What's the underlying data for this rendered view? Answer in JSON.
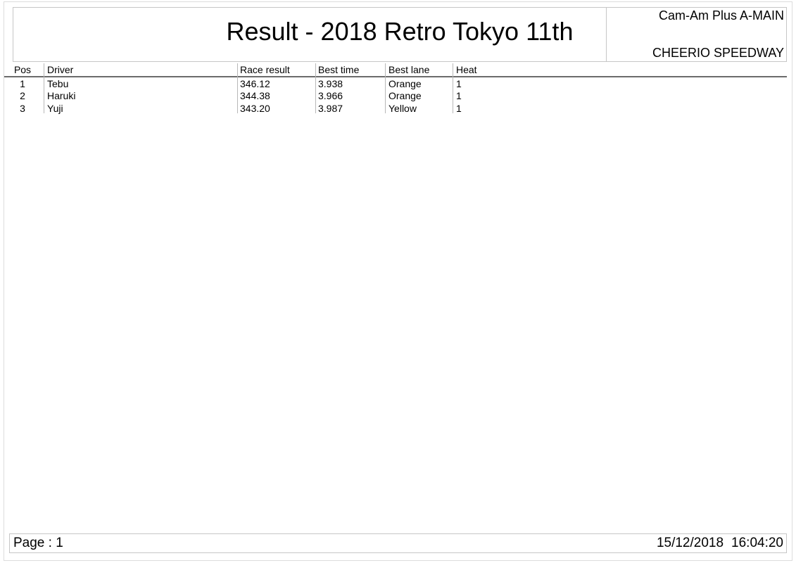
{
  "header": {
    "title": "Result - 2018 Retro Tokyo 11th",
    "class_name": "Cam-Am Plus A-MAIN",
    "track_name": "CHEERIO SPEEDWAY"
  },
  "results_table": {
    "columns": [
      "Pos",
      "Driver",
      "Race result",
      "Best time",
      "Best lane",
      "Heat"
    ],
    "rows": [
      {
        "pos": "1",
        "driver": "Tebu",
        "race_result": "346.12",
        "best_time": "3.938",
        "best_lane": "Orange",
        "heat": "1"
      },
      {
        "pos": "2",
        "driver": "Haruki",
        "race_result": "344.38",
        "best_time": "3.966",
        "best_lane": "Orange",
        "heat": "1"
      },
      {
        "pos": "3",
        "driver": "Yuji",
        "race_result": "343.20",
        "best_time": "3.987",
        "best_lane": "Yellow",
        "heat": "1"
      }
    ]
  },
  "footer": {
    "page_label": "Page : 1",
    "date": "15/12/2018",
    "time": "16:04:20"
  },
  "colors": {
    "background": "#ffffff",
    "text": "#000000",
    "box_border": "#c6c6c6",
    "header_rule": "#6b6b6b",
    "column_separator": "#b8b8b8",
    "page_border": "#dcdcdc"
  }
}
